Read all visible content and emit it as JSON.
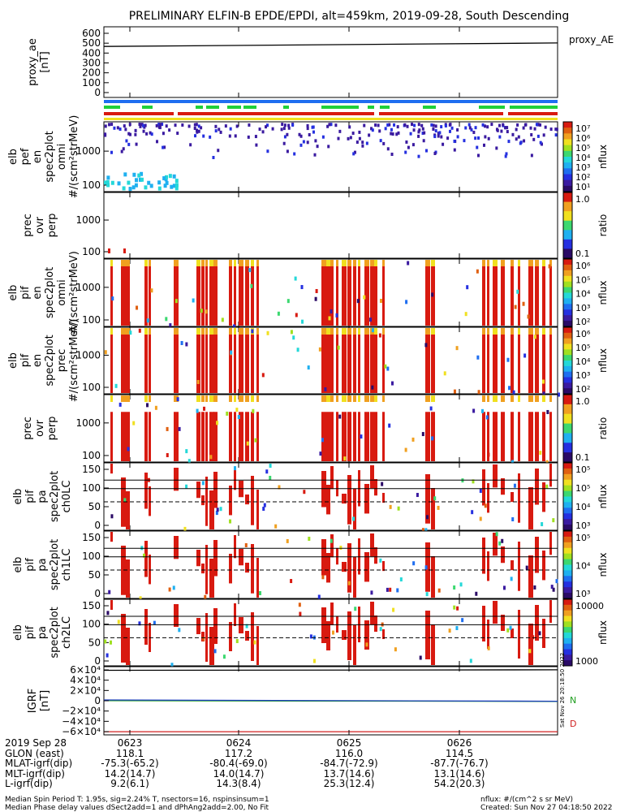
{
  "title": "PRELIMINARY ELFIN-B EPDE/EPDI, alt=459km, 2019-09-28, South Descending",
  "chart_data": {
    "type": "heatmap",
    "time_ticks": [
      "0623",
      "0624",
      "0625",
      "0626"
    ],
    "panels": [
      {
        "ylabel": [
          "proxy_ae",
          "[nT]"
        ],
        "yticks": [
          "600",
          "500",
          "400",
          "300",
          "200",
          "100",
          "0"
        ],
        "ylim": [
          -50,
          650
        ],
        "legend": "proxy_AE",
        "series": [
          {
            "x": [
              0,
              1
            ],
            "values": [
              455,
              490
            ]
          }
        ]
      },
      {
        "kind": "bars"
      },
      {
        "ylabel": [
          "elb",
          "pef",
          "en",
          "spec2plot",
          "omni",
          "#/(scm²strMeV)"
        ],
        "yticks": [
          "1000",
          "100"
        ],
        "cbar": {
          "ticks": [
            "10⁷",
            "10⁶",
            "10⁵",
            "10⁴",
            "10³",
            "10²",
            "10¹"
          ],
          "label": "nflux"
        }
      },
      {
        "ylabel": [
          "prec",
          "ovr",
          "perp"
        ],
        "yticks": [
          "1000",
          "100"
        ],
        "cbar": {
          "ticks": [
            "1.0",
            "0.1"
          ],
          "label": "ratio"
        }
      },
      {
        "ylabel": [
          "elb",
          "pif",
          "en",
          "spec2plot",
          "omni",
          "#/(scm²strMeV)"
        ],
        "yticks": [
          "1000",
          "100"
        ],
        "cbar": {
          "ticks": [
            "10⁶",
            "10⁵",
            "10⁴",
            "10³",
            "10²"
          ],
          "label": "nflux"
        }
      },
      {
        "ylabel": [
          "elb",
          "pif",
          "en",
          "spec2plot",
          "prec",
          "#/(scm²strMeV)"
        ],
        "yticks": [
          "1000",
          "100"
        ],
        "cbar": {
          "ticks": [
            "10⁶",
            "10⁵",
            "10⁴",
            "10³",
            "10²"
          ],
          "label": "nflux"
        }
      },
      {
        "ylabel": [
          "prec",
          "ovr",
          "perp"
        ],
        "yticks": [
          "1000",
          "100"
        ],
        "cbar": {
          "ticks": [
            "1.0",
            "0.1"
          ],
          "label": "ratio"
        }
      },
      {
        "ylabel": [
          "elb",
          "pif",
          "pa",
          "spec2plot",
          "ch0LC"
        ],
        "yticks": [
          "150",
          "100",
          "50",
          "0"
        ],
        "cbar": {
          "ticks": [
            "10⁵",
            "10⁵",
            "10⁴",
            "10³"
          ],
          "label": "nflux"
        }
      },
      {
        "ylabel": [
          "elb",
          "pif",
          "pa",
          "spec2plot",
          "ch1LC"
        ],
        "yticks": [
          "150",
          "100",
          "50",
          "0"
        ],
        "cbar": {
          "ticks": [
            "10⁵",
            "10⁴",
            "10³"
          ],
          "label": "nflux"
        }
      },
      {
        "ylabel": [
          "elb",
          "pif",
          "pa",
          "spec2plot",
          "ch2LC"
        ],
        "yticks": [
          "150",
          "100",
          "50",
          "0"
        ],
        "cbar": {
          "ticks": [
            "10000",
            "1000"
          ],
          "label": "nflux"
        }
      },
      {
        "ylabel": [
          "IGRF",
          "[nT]"
        ],
        "yticks": [
          "6×10⁴",
          "4×10⁴",
          "2×10⁴",
          "0",
          "−2×10⁴",
          "−4×10⁴",
          "−6×10⁴"
        ],
        "ylim": [
          -65000,
          65000
        ],
        "legend": [
          "N",
          "D"
        ],
        "series": [
          {
            "name": "N",
            "color": "#1e9e1e",
            "x": [
              0,
              1
            ],
            "values": [
              200,
              -1200
            ]
          },
          {
            "name": "blue",
            "color": "#1f3fbf",
            "x": [
              0,
              1
            ],
            "values": [
              1500,
              -1000
            ]
          },
          {
            "name": "D",
            "color": "#d02020",
            "x": [
              0,
              1
            ],
            "values": [
              -59000,
              -59000
            ]
          },
          {
            "name": "top",
            "color": "#000000",
            "x": [
              0,
              1
            ],
            "values": [
              58000,
              59000
            ]
          }
        ]
      }
    ]
  },
  "orbit_table": {
    "rows": [
      {
        "label": "2019 Sep 28",
        "values": [
          "0623",
          "0624",
          "0625",
          "0626"
        ]
      },
      {
        "label": "GLON (east)",
        "values": [
          "118.1",
          "117.2",
          "116.0",
          "114.5"
        ]
      },
      {
        "label": "MLAT-igrf(dip)",
        "values": [
          "-75.3(-65.2)",
          "-80.4(-69.0)",
          "-84.7(-72.9)",
          "-87.7(-76.7)"
        ]
      },
      {
        "label": "MLT-igrf(dip)",
        "values": [
          "14.2(14.7)",
          "14.0(14.7)",
          "13.7(14.6)",
          "13.1(14.6)"
        ]
      },
      {
        "label": "L-igrf(dip)",
        "values": [
          "9.2(6.1)",
          "14.3(8.4)",
          "25.3(12.4)",
          "54.2(20.3)"
        ]
      }
    ]
  },
  "side_stamp": "Sat Nov 26 20:18:50 2022",
  "footer": {
    "left1": "Median Spin Period T: 1.95s, sig=2.24% T, nsectors=16, nspinsinsum=1",
    "left2": "Median Phase delay values dSect2add=1 and dPhAng2add=2.00, No Fit",
    "right1": "nflux: #/(cm^2 s sr MeV)",
    "right2": "Created: Sun Nov 27 04:18:50 2022"
  }
}
